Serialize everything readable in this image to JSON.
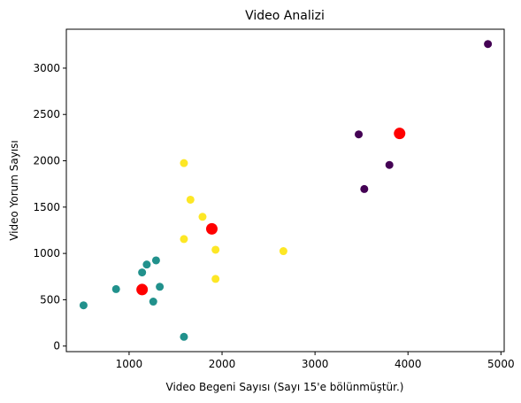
{
  "chart_data": {
    "type": "scatter",
    "title": "Video Analizi",
    "xlabel": "Video Begeni Sayısı (Sayı 15'e bölünmüştür.)",
    "ylabel": "Video Yorum Sayısı",
    "xlim": [
      325,
      5035
    ],
    "ylim": [
      -60,
      3420
    ],
    "xticks": [
      1000,
      2000,
      3000,
      4000,
      5000
    ],
    "yticks": [
      0,
      500,
      1000,
      1500,
      2000,
      2500,
      3000
    ],
    "grid": false,
    "series": [
      {
        "color": "#440154",
        "points": [
          [
            4860,
            3260
          ],
          [
            3470,
            2285
          ],
          [
            3800,
            1955
          ],
          [
            3530,
            1695
          ]
        ]
      },
      {
        "color": "#21918c",
        "points": [
          [
            510,
            440
          ],
          [
            860,
            615
          ],
          [
            1140,
            795
          ],
          [
            1190,
            880
          ],
          [
            1290,
            925
          ],
          [
            1330,
            640
          ],
          [
            1260,
            480
          ],
          [
            1590,
            100
          ]
        ]
      },
      {
        "color": "#fde725",
        "points": [
          [
            1590,
            1975
          ],
          [
            1660,
            1580
          ],
          [
            1790,
            1395
          ],
          [
            1590,
            1155
          ],
          [
            1930,
            1040
          ],
          [
            2660,
            1025
          ],
          [
            1930,
            725
          ]
        ]
      },
      {
        "color": "#ff0000",
        "points": [
          [
            3910,
            2295
          ],
          [
            1890,
            1265
          ],
          [
            1140,
            610
          ]
        ]
      }
    ]
  }
}
